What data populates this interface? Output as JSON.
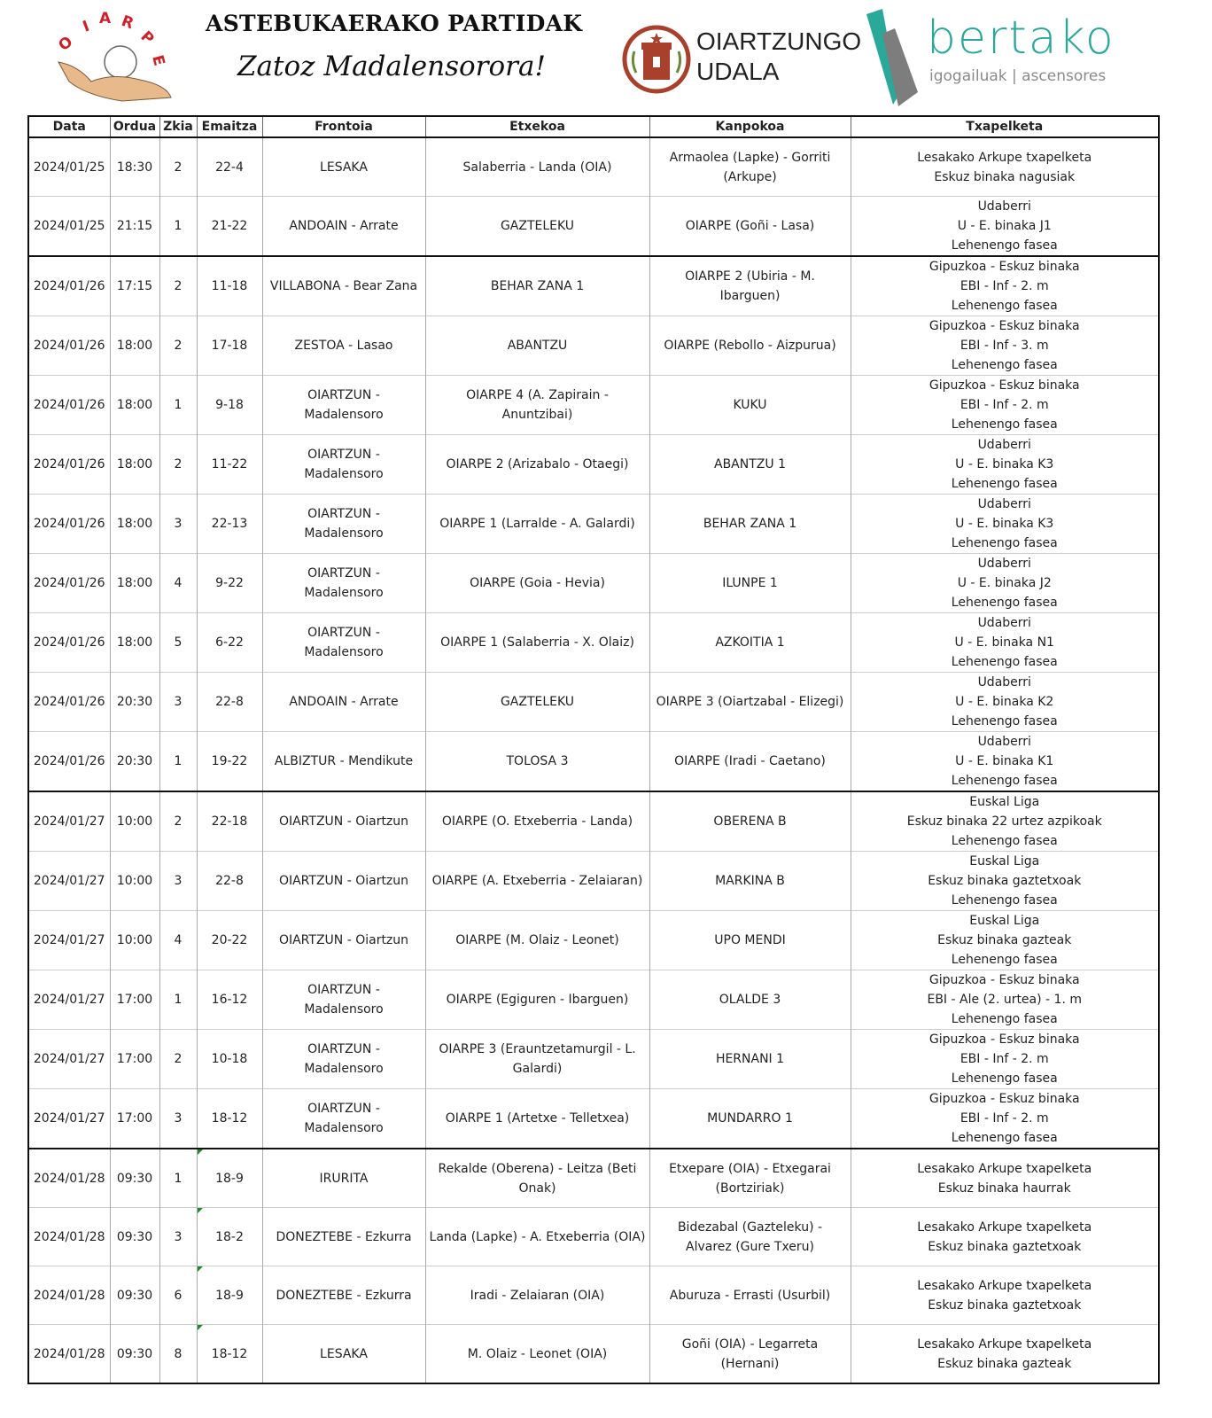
{
  "header": {
    "title": "ASTEBUKAERAKO PARTIDAK",
    "subtitle": "Zatoz Madalensorora!",
    "logos": {
      "oiarpe": "OIARPE",
      "udala_line1": "OIARTZUNGO",
      "udala_line2": "UDALA",
      "bertako": "bertako",
      "bertako_sub": "igogailuak | ascensores"
    },
    "colors": {
      "oiarpe_red": "#d0202a",
      "udala_brown": "#a8402c",
      "bertako_teal": "#2aa899"
    }
  },
  "table": {
    "columns": [
      "Data",
      "Ordua",
      "Zkia",
      "Emaitza",
      "Frontoia",
      "Etxekoa",
      "Kanpokoa",
      "Txapelketa"
    ],
    "rows": [
      {
        "data": "2024/01/25",
        "ordua": "18:30",
        "zkia": "2",
        "emaitza": "22-4",
        "frontoia": "LESAKA",
        "etxekoa": "Salaberria - Landa (OIA)",
        "kanpokoa": "Armaolea (Lapke) - Gorriti (Arkupe)",
        "txapelketa": [
          "Lesakako Arkupe txapelketa",
          "Eskuz binaka nagusiak"
        ]
      },
      {
        "data": "2024/01/25",
        "ordua": "21:15",
        "zkia": "1",
        "emaitza": "21-22",
        "frontoia": "ANDOAIN - Arrate",
        "etxekoa": "GAZTELEKU",
        "kanpokoa": "OIARPE (Goñi - Lasa)",
        "txapelketa": [
          "Udaberri",
          "U - E. binaka J1",
          "Lehenengo fasea"
        ]
      },
      {
        "data": "2024/01/26",
        "ordua": "17:15",
        "zkia": "2",
        "emaitza": "11-18",
        "frontoia": "VILLABONA - Bear Zana",
        "etxekoa": "BEHAR ZANA 1",
        "kanpokoa": "OIARPE 2 (Ubiria - M. Ibarguen)",
        "txapelketa": [
          "Gipuzkoa - Eskuz binaka",
          "EBI - Inf - 2. m",
          "Lehenengo fasea"
        ]
      },
      {
        "data": "2024/01/26",
        "ordua": "18:00",
        "zkia": "2",
        "emaitza": "17-18",
        "frontoia": "ZESTOA - Lasao",
        "etxekoa": "ABANTZU",
        "kanpokoa": "OIARPE (Rebollo - Aizpurua)",
        "txapelketa": [
          "Gipuzkoa - Eskuz binaka",
          "EBI - Inf - 3. m",
          "Lehenengo fasea"
        ]
      },
      {
        "data": "2024/01/26",
        "ordua": "18:00",
        "zkia": "1",
        "emaitza": "9-18",
        "frontoia": "OIARTZUN - Madalensoro",
        "etxekoa": "OIARPE 4 (A. Zapirain - Anuntzibai)",
        "kanpokoa": "KUKU",
        "txapelketa": [
          "Gipuzkoa - Eskuz binaka",
          "EBI - Inf - 2. m",
          "Lehenengo fasea"
        ]
      },
      {
        "data": "2024/01/26",
        "ordua": "18:00",
        "zkia": "2",
        "emaitza": "11-22",
        "frontoia": "OIARTZUN - Madalensoro",
        "etxekoa": "OIARPE 2 (Arizabalo - Otaegi)",
        "kanpokoa": "ABANTZU 1",
        "txapelketa": [
          "Udaberri",
          "U - E. binaka K3",
          "Lehenengo fasea"
        ]
      },
      {
        "data": "2024/01/26",
        "ordua": "18:00",
        "zkia": "3",
        "emaitza": "22-13",
        "frontoia": "OIARTZUN - Madalensoro",
        "etxekoa": "OIARPE 1 (Larralde - A. Galardi)",
        "kanpokoa": "BEHAR ZANA 1",
        "txapelketa": [
          "Udaberri",
          "U - E. binaka K3",
          "Lehenengo fasea"
        ]
      },
      {
        "data": "2024/01/26",
        "ordua": "18:00",
        "zkia": "4",
        "emaitza": "9-22",
        "frontoia": "OIARTZUN - Madalensoro",
        "etxekoa": "OIARPE (Goia - Hevia)",
        "kanpokoa": "ILUNPE 1",
        "txapelketa": [
          "Udaberri",
          "U - E. binaka J2",
          "Lehenengo fasea"
        ]
      },
      {
        "data": "2024/01/26",
        "ordua": "18:00",
        "zkia": "5",
        "emaitza": "6-22",
        "frontoia": "OIARTZUN - Madalensoro",
        "etxekoa": "OIARPE 1 (Salaberria - X. Olaiz)",
        "kanpokoa": "AZKOITIA 1",
        "txapelketa": [
          "Udaberri",
          "U - E. binaka N1",
          "Lehenengo fasea"
        ]
      },
      {
        "data": "2024/01/26",
        "ordua": "20:30",
        "zkia": "3",
        "emaitza": "22-8",
        "frontoia": "ANDOAIN - Arrate",
        "etxekoa": "GAZTELEKU",
        "kanpokoa": "OIARPE 3 (Oiartzabal - Elizegi)",
        "txapelketa": [
          "Udaberri",
          "U - E. binaka K2",
          "Lehenengo fasea"
        ]
      },
      {
        "data": "2024/01/26",
        "ordua": "20:30",
        "zkia": "1",
        "emaitza": "19-22",
        "frontoia": "ALBIZTUR - Mendikute",
        "etxekoa": "TOLOSA 3",
        "kanpokoa": "OIARPE (Iradi - Caetano)",
        "txapelketa": [
          "Udaberri",
          "U - E. binaka K1",
          "Lehenengo fasea"
        ]
      },
      {
        "data": "2024/01/27",
        "ordua": "10:00",
        "zkia": "2",
        "emaitza": "22-18",
        "frontoia": "OIARTZUN - Oiartzun",
        "etxekoa": "OIARPE (O. Etxeberria - Landa)",
        "kanpokoa": "OBERENA B",
        "txapelketa": [
          "Euskal Liga",
          "Eskuz binaka 22 urtez azpikoak",
          "Lehenengo fasea"
        ]
      },
      {
        "data": "2024/01/27",
        "ordua": "10:00",
        "zkia": "3",
        "emaitza": "22-8",
        "frontoia": "OIARTZUN - Oiartzun",
        "etxekoa": "OIARPE (A. Etxeberria - Zelaiaran)",
        "kanpokoa": "MARKINA B",
        "txapelketa": [
          "Euskal Liga",
          "Eskuz binaka gaztetxoak",
          "Lehenengo fasea"
        ]
      },
      {
        "data": "2024/01/27",
        "ordua": "10:00",
        "zkia": "4",
        "emaitza": "20-22",
        "frontoia": "OIARTZUN - Oiartzun",
        "etxekoa": "OIARPE (M. Olaiz - Leonet)",
        "kanpokoa": "UPO MENDI",
        "txapelketa": [
          "Euskal Liga",
          "Eskuz binaka gazteak",
          "Lehenengo fasea"
        ]
      },
      {
        "data": "2024/01/27",
        "ordua": "17:00",
        "zkia": "1",
        "emaitza": "16-12",
        "frontoia": "OIARTZUN - Madalensoro",
        "etxekoa": "OIARPE (Egiguren - Ibarguen)",
        "kanpokoa": "OLALDE 3",
        "txapelketa": [
          "Gipuzkoa - Eskuz binaka",
          "EBI - Ale (2. urtea) - 1. m",
          "Lehenengo fasea"
        ]
      },
      {
        "data": "2024/01/27",
        "ordua": "17:00",
        "zkia": "2",
        "emaitza": "10-18",
        "frontoia": "OIARTZUN - Madalensoro",
        "etxekoa": "OIARPE 3 (Erauntzetamurgil - L. Galardi)",
        "kanpokoa": "HERNANI 1",
        "txapelketa": [
          "Gipuzkoa - Eskuz binaka",
          "EBI - Inf - 2. m",
          "Lehenengo fasea"
        ]
      },
      {
        "data": "2024/01/27",
        "ordua": "17:00",
        "zkia": "3",
        "emaitza": "18-12",
        "frontoia": "OIARTZUN - Madalensoro",
        "etxekoa": "OIARPE 1 (Artetxe - Telletxea)",
        "kanpokoa": "MUNDARRO 1",
        "txapelketa": [
          "Gipuzkoa - Eskuz binaka",
          "EBI - Inf - 2. m",
          "Lehenengo fasea"
        ]
      },
      {
        "data": "2024/01/28",
        "ordua": "09:30",
        "zkia": "1",
        "emaitza": "18-9",
        "frontoia": "IRURITA",
        "etxekoa": "Rekalde (Oberena) - Leitza (Beti Onak)",
        "kanpokoa": "Etxepare (OIA) - Etxegarai (Bortziriak)",
        "txapelketa": [
          "Lesakako Arkupe txapelketa",
          "Eskuz binaka haurrak"
        ]
      },
      {
        "data": "2024/01/28",
        "ordua": "09:30",
        "zkia": "3",
        "emaitza": "18-2",
        "frontoia": "DONEZTEBE - Ezkurra",
        "etxekoa": "Landa (Lapke) - A. Etxeberria (OIA)",
        "kanpokoa": "Bidezabal (Gazteleku) - Alvarez (Gure Txeru)",
        "txapelketa": [
          "Lesakako Arkupe txapelketa",
          "Eskuz binaka gaztetxoak"
        ]
      },
      {
        "data": "2024/01/28",
        "ordua": "09:30",
        "zkia": "6",
        "emaitza": "18-9",
        "frontoia": "DONEZTEBE - Ezkurra",
        "etxekoa": "Iradi - Zelaiaran (OIA)",
        "kanpokoa": "Aburuza - Errasti (Usurbil)",
        "txapelketa": [
          "Lesakako Arkupe txapelketa",
          "Eskuz binaka gaztetxoak"
        ]
      },
      {
        "data": "2024/01/28",
        "ordua": "09:30",
        "zkia": "8",
        "emaitza": "18-12",
        "frontoia": "LESAKA",
        "etxekoa": "M. Olaiz - Leonet (OIA)",
        "kanpokoa": "Goñi (OIA) - Legarreta (Hernani)",
        "txapelketa": [
          "Lesakako Arkupe txapelketa",
          "Eskuz binaka gazteak"
        ]
      }
    ]
  }
}
